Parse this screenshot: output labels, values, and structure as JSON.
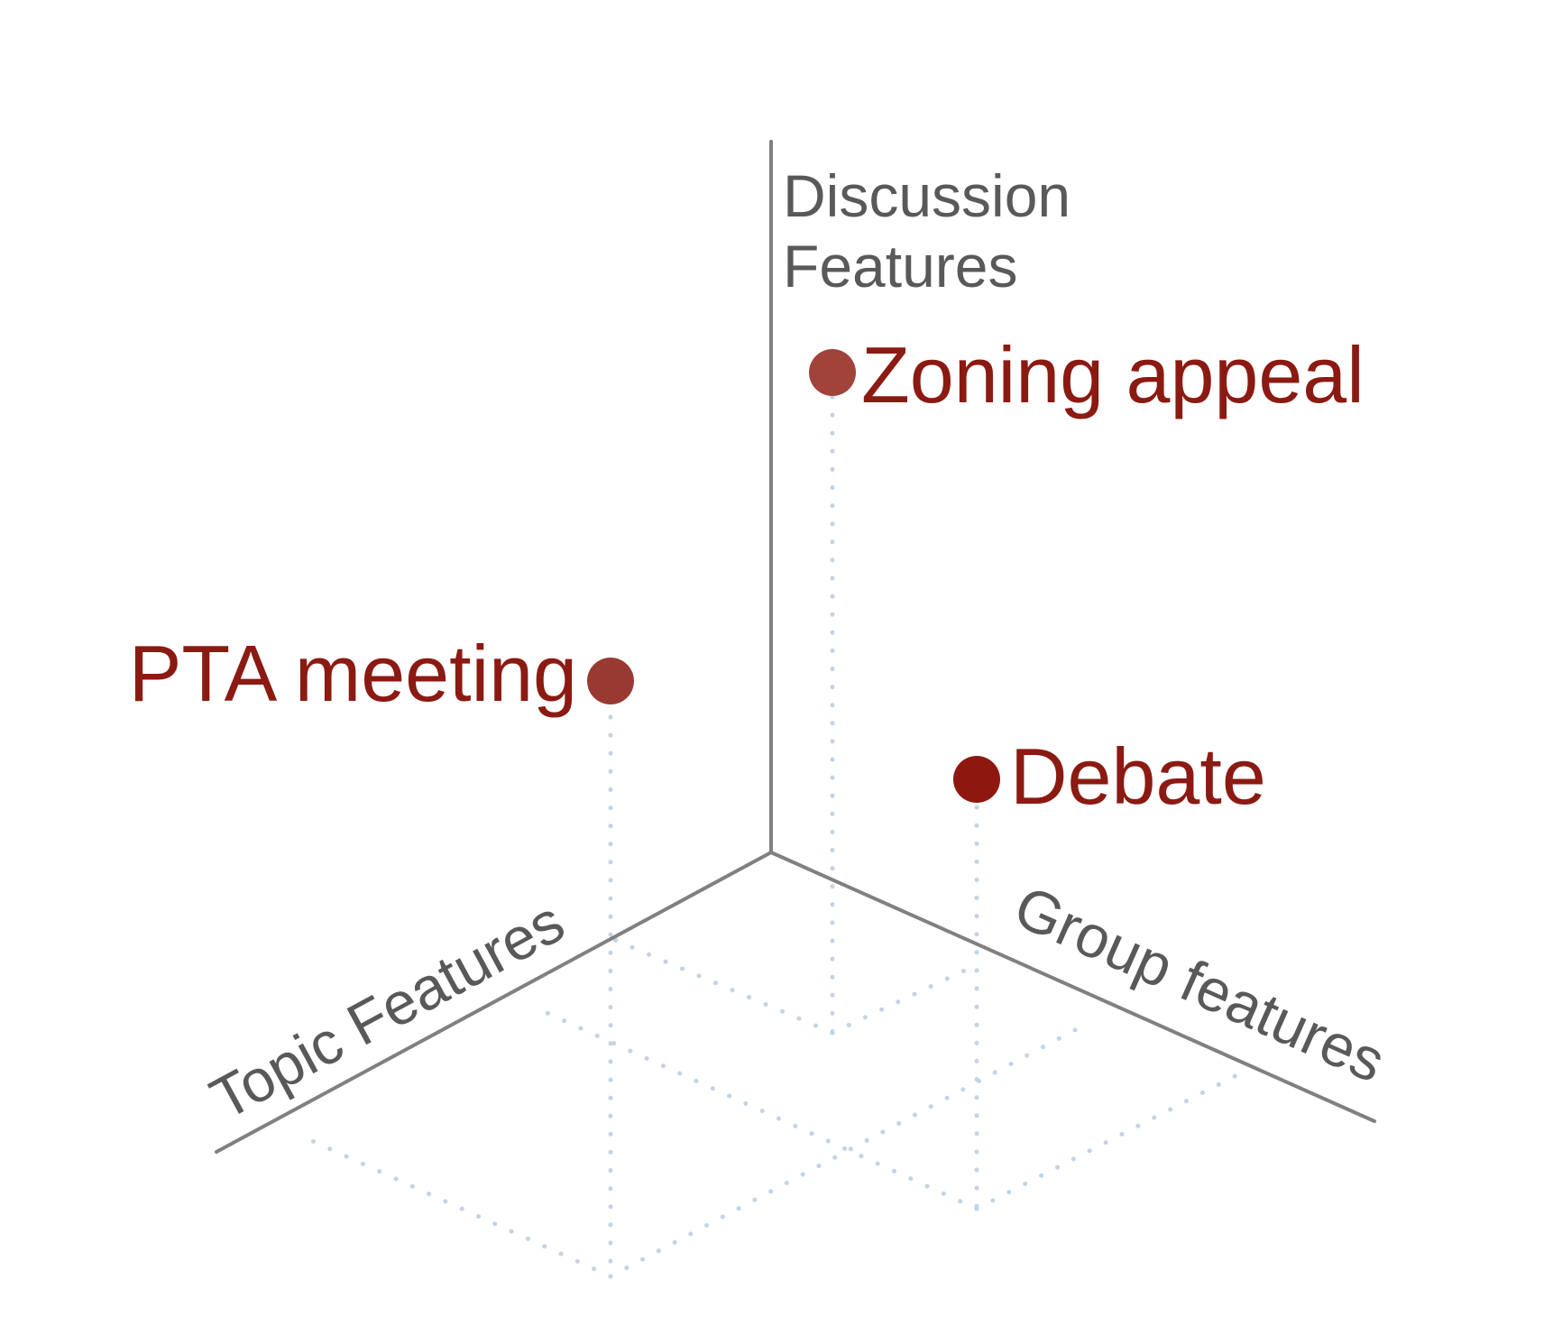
{
  "axes": {
    "vertical_line1": "Discussion",
    "vertical_line2": "Features",
    "left": "Topic Features",
    "right": "Group features"
  },
  "colors": {
    "axis": "#808080",
    "axis_text": "#595959",
    "guide": "#c5d3e2",
    "label": "#8b1a12"
  },
  "points": [
    {
      "label": "Zoning appeal",
      "color": "#a2433b"
    },
    {
      "label": "PTA meeting",
      "color": "#983a32"
    },
    {
      "label": "Debate",
      "color": "#8e1810"
    }
  ]
}
